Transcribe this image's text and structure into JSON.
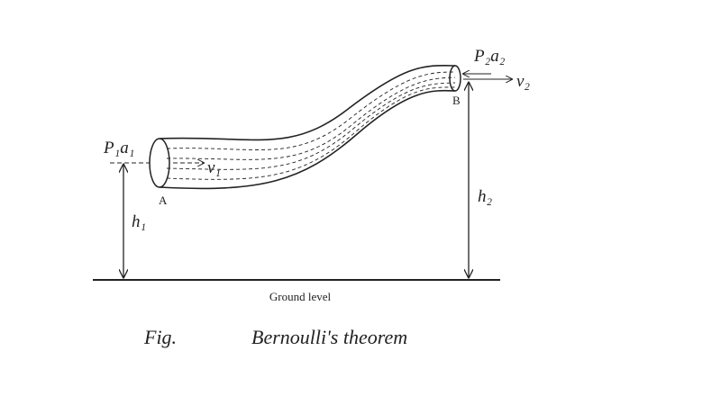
{
  "labels": {
    "p1a1": "P₁a₁",
    "v1": "v₁",
    "a": "A",
    "h1": "h₁",
    "p2a2": "P₂a₂",
    "v2": "v₂",
    "b": "B",
    "h2": "h₂",
    "ground": "Ground level"
  },
  "caption": {
    "fig": "Fig.",
    "title": "Bernoulli's theorem"
  }
}
